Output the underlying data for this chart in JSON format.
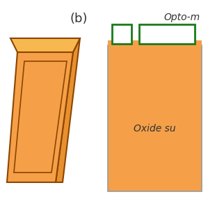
{
  "bg_color": "#ffffff",
  "label_b": "(b)",
  "label_b_fontsize": 13,
  "opto_label": "Opto-m",
  "opto_label_fontsize": 10,
  "oxide_label": "Oxide su",
  "oxide_label_fontsize": 10,
  "orange_fill": "#F5A048",
  "orange_light": "#F8B850",
  "orange_mid": "#E89030",
  "orange_dark": "#8B4500",
  "green_edge": "#1A7A1A",
  "green_fill": "#ffffff",
  "text_color": "#333333"
}
